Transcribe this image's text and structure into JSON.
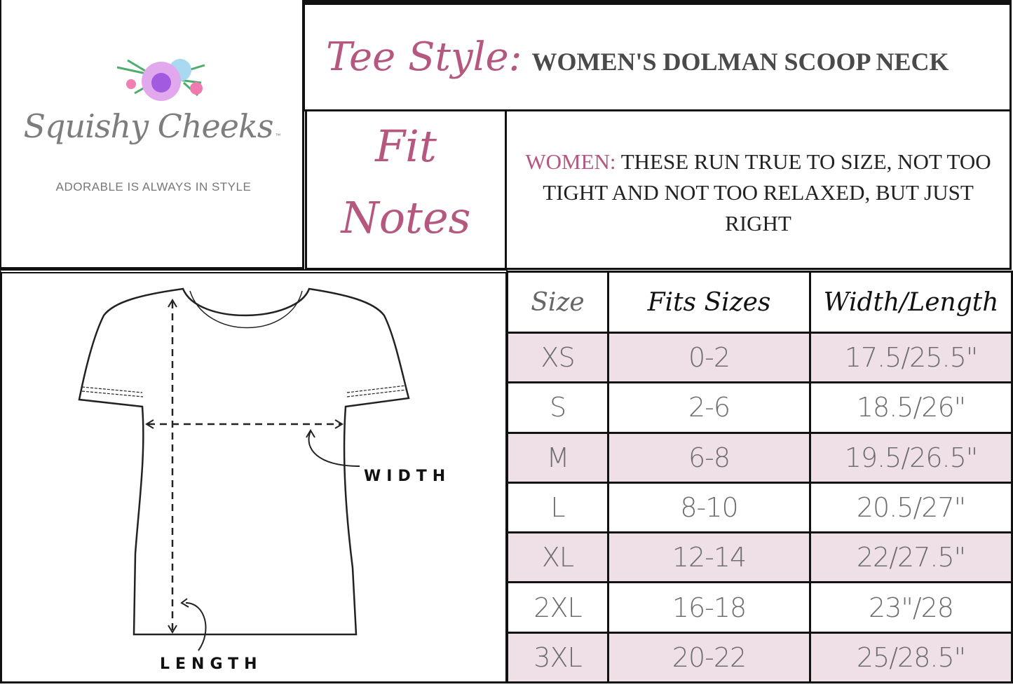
{
  "logo": {
    "brand": "Squishy Cheeks",
    "trademark": "™",
    "tagline": "ADORABLE IS ALWAYS IN STYLE"
  },
  "tee_style": {
    "label": "Tee Style:",
    "value": "WOMEN'S DOLMAN SCOOP NECK"
  },
  "fit_notes": {
    "label_line1": "Fit",
    "label_line2": "Notes",
    "lead": "WOMEN:",
    "text": " THESE RUN TRUE TO SIZE, NOT TOO TIGHT AND NOT TOO RELAXED, BUT JUST RIGHT"
  },
  "diagram": {
    "width_label": "WIDTH",
    "length_label": "LENGTH"
  },
  "colors": {
    "accent": "#b5577f",
    "row_highlight": "#efe0e8",
    "text_gray": "#6e6e6e"
  },
  "size_table": {
    "headers": [
      "Size",
      "Fits Sizes",
      "Width/Length"
    ],
    "rows": [
      [
        "XS",
        "0-2",
        "17.5/25.5\""
      ],
      [
        "S",
        "2-6",
        "18.5/26\""
      ],
      [
        "M",
        "6-8",
        "19.5/26.5\""
      ],
      [
        "L",
        "8-10",
        "20.5/27\""
      ],
      [
        "XL",
        "12-14",
        "22/27.5\""
      ],
      [
        "2XL",
        "16-18",
        "23\"/28"
      ],
      [
        "3XL",
        "20-22",
        "25/28.5\""
      ]
    ]
  }
}
